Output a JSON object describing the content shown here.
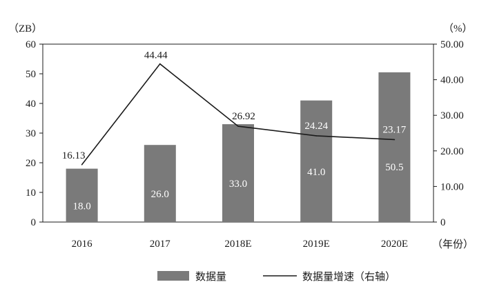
{
  "chart_data": {
    "type": "bar",
    "categories": [
      "2016",
      "2017",
      "2018E",
      "2019E",
      "2020E"
    ],
    "series": [
      {
        "name": "数据量",
        "type": "bar",
        "axis": "left",
        "values": [
          18.0,
          26.0,
          33.0,
          41.0,
          50.5
        ],
        "labels": [
          "18.0",
          "26.0",
          "33.0",
          "41.0",
          "50.5"
        ],
        "color": "#7a7a7a"
      },
      {
        "name": "数据量增速（右轴）",
        "type": "line",
        "axis": "right",
        "values": [
          16.13,
          44.44,
          26.92,
          24.24,
          23.17
        ],
        "labels": [
          "16.13",
          "44.44",
          "26.92",
          "24.24",
          "23.17"
        ],
        "color": "#1a1a1a"
      }
    ],
    "left_axis": {
      "unit": "（ZB）",
      "ylim": [
        0,
        60
      ],
      "ticks": [
        "0",
        "10",
        "20",
        "30",
        "40",
        "50",
        "60"
      ]
    },
    "right_axis": {
      "unit": "（%）",
      "ylim": [
        0,
        50
      ],
      "ticks": [
        "0",
        "10.00",
        "20.00",
        "30.00",
        "40.00",
        "50.00"
      ]
    },
    "x_axis": {
      "unit": "（年份）"
    },
    "grid": false,
    "legend": "bottom-center"
  }
}
